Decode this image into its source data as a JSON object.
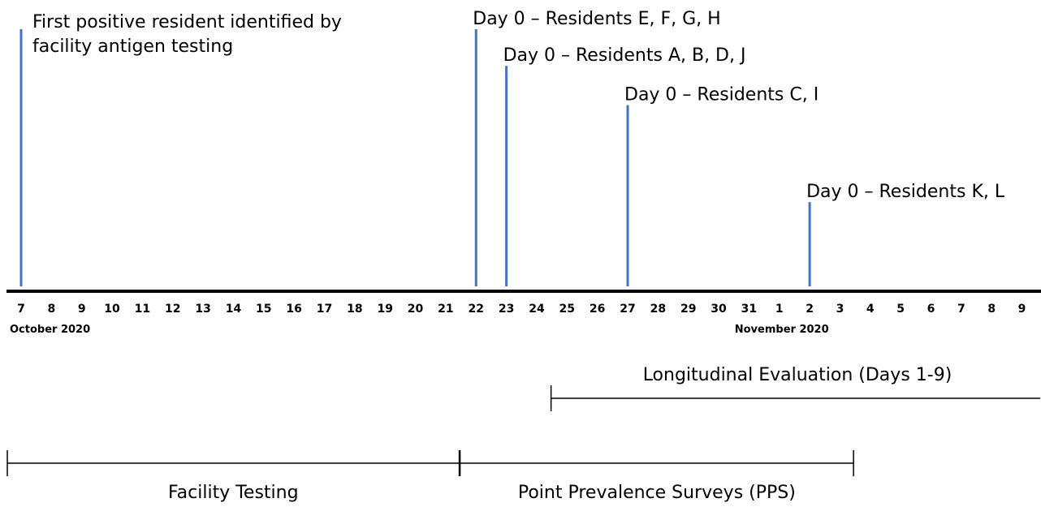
{
  "timeline": {
    "days": [
      "7",
      "8",
      "9",
      "10",
      "11",
      "12",
      "13",
      "14",
      "15",
      "16",
      "17",
      "18",
      "19",
      "20",
      "21",
      "22",
      "23",
      "24",
      "25",
      "26",
      "27",
      "28",
      "29",
      "30",
      "31",
      "1",
      "2",
      "3",
      "4",
      "5",
      "6",
      "7",
      "8",
      "9"
    ],
    "months": [
      {
        "label": "October 2020",
        "start_index": 0
      },
      {
        "label": "November 2020",
        "start_index": 25
      }
    ]
  },
  "events": [
    {
      "day_index": 0,
      "lines": [
        "First positive resident identified by",
        "facility antigen testing"
      ],
      "height": 1.0
    },
    {
      "day_index": 15,
      "lines": [
        "Day 0 – Residents E, F, G, H"
      ],
      "height": 1.0
    },
    {
      "day_index": 16,
      "lines": [
        "Day 0 – Residents A, B, D, J"
      ],
      "height": 0.86
    },
    {
      "day_index": 20,
      "lines": [
        "Day 0 – Residents C, I"
      ],
      "height": 0.71
    },
    {
      "day_index": 26,
      "lines": [
        "Day 0 – Residents K, L"
      ],
      "height": 0.34
    }
  ],
  "periods": [
    {
      "label": "Longitudinal Evaluation (Days 1-9)",
      "start_index": 17.5,
      "end_index": 34.0,
      "row": "upper"
    },
    {
      "label": "Facility Testing",
      "start_index": -0.5,
      "end_index": 14.5,
      "row": "lower"
    },
    {
      "label": "Point Prevalence Surveys (PPS)",
      "start_index": 14.5,
      "end_index": 27.5,
      "row": "lower"
    }
  ],
  "colors": {
    "event_line": "#4472c4",
    "axis": "#000000"
  }
}
